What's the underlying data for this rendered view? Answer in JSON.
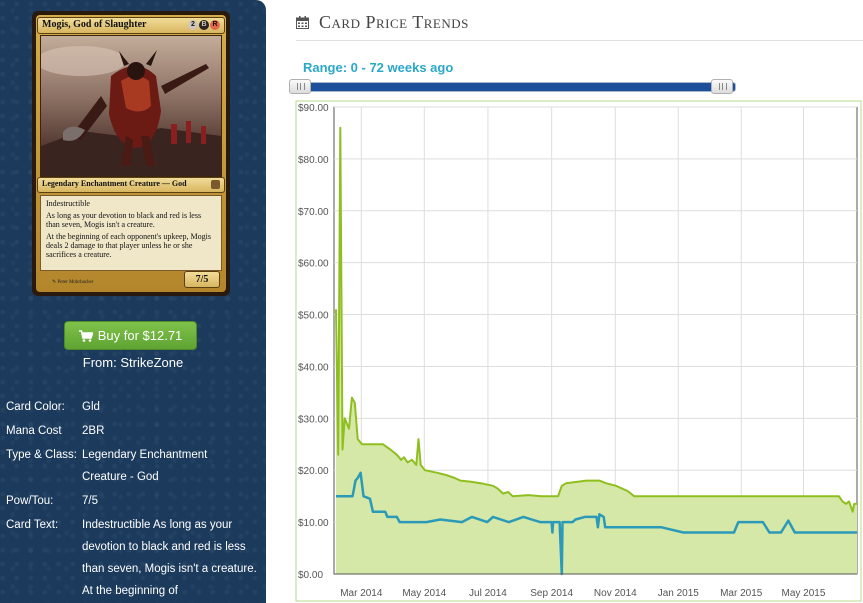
{
  "card": {
    "name": "Mogis, God of Slaughter",
    "mana_symbols": [
      "2",
      "B",
      "R"
    ],
    "type_line": "Legendary Enchantment Creature — God",
    "rules_text_1": "Indestructible",
    "rules_text_2": "As long as your devotion to black and red is less than seven, Mogis isn't a creature.",
    "rules_text_3": "At the beginning of each opponent's upkeep, Mogis deals 2 damage to that player unless he or she sacrifices a creature.",
    "power_toughness": "7/5",
    "artist": "Peter Mohrbacher"
  },
  "buy": {
    "label": "Buy for $12.71",
    "from": "From: StrikeZone"
  },
  "details": [
    {
      "label": "Card Color:",
      "value": "Gld"
    },
    {
      "label": "Mana Cost",
      "value": "2BR"
    },
    {
      "label": "Type & Class:",
      "value": "Legendary Enchantment Creature - God"
    },
    {
      "label": "Pow/Tou:",
      "value": "7/5"
    },
    {
      "label": "Card Text:",
      "value": "Indestructible As long as your devotion to black and red is less than seven, Mogis isn't a creature. At the beginning of"
    }
  ],
  "header": {
    "title": "Card Price Trends",
    "icon": "calendar-icon"
  },
  "range": {
    "label": "Range: 0 - 72 weeks ago",
    "min_weeks": 0,
    "max_weeks": 72
  },
  "colors": {
    "sidebar": "#1b3a5c",
    "accent": "#2aa8c9",
    "buy_button": "#6cb33f",
    "series_high": "#8fbf1f",
    "series_avg": "#2a9ab8",
    "fill": "#d6e8a8"
  },
  "chart_data": {
    "type": "area",
    "ylim": [
      0,
      90
    ],
    "yticks": [
      "$0.00",
      "$10.00",
      "$20.00",
      "$30.00",
      "$40.00",
      "$50.00",
      "$60.00",
      "$70.00",
      "$80.00",
      "$90.00"
    ],
    "ytick_values": [
      0,
      10,
      20,
      30,
      40,
      50,
      60,
      70,
      80,
      90
    ],
    "xticks": [
      "Mar 2014",
      "May 2014",
      "Jul 2014",
      "Sep 2014",
      "Nov 2014",
      "Jan 2015",
      "Mar 2015",
      "May 2015"
    ],
    "x_unit": "weeks since start of range",
    "xlim": [
      0,
      72
    ],
    "xtick_positions": [
      3.5,
      12.2,
      21,
      29.8,
      38.6,
      47.3,
      56,
      64.6
    ],
    "grid": true,
    "series": [
      {
        "points": [
          [
            0,
            51
          ],
          [
            0.3,
            23
          ],
          [
            0.6,
            86
          ],
          [
            0.9,
            24
          ],
          [
            1.2,
            30
          ],
          [
            1.8,
            28
          ],
          [
            2.2,
            34
          ],
          [
            2.6,
            33
          ],
          [
            3,
            26
          ],
          [
            3.6,
            25
          ],
          [
            5,
            25
          ],
          [
            6.5,
            25
          ],
          [
            7.5,
            24
          ],
          [
            8.4,
            23
          ],
          [
            9,
            22
          ],
          [
            9.4,
            22.5
          ],
          [
            9.9,
            21.5
          ],
          [
            10.5,
            22
          ],
          [
            11.1,
            21
          ],
          [
            11.4,
            26
          ],
          [
            11.7,
            21
          ],
          [
            12.3,
            20
          ],
          [
            14,
            19.5
          ],
          [
            15.4,
            19
          ],
          [
            16.4,
            18.5
          ],
          [
            17.2,
            18
          ],
          [
            18.5,
            17.8
          ],
          [
            20,
            17.5
          ],
          [
            21.7,
            17
          ],
          [
            22.3,
            16.5
          ],
          [
            23.1,
            15.5
          ],
          [
            23.8,
            15.8
          ],
          [
            24.4,
            15
          ],
          [
            26.6,
            15.2
          ],
          [
            28.4,
            15
          ],
          [
            30.7,
            15
          ],
          [
            31.2,
            17
          ],
          [
            31.8,
            17.5
          ],
          [
            34.6,
            18
          ],
          [
            36.4,
            18
          ],
          [
            37.3,
            17.5
          ],
          [
            38.7,
            17
          ],
          [
            39.5,
            16.5
          ],
          [
            40.3,
            16
          ],
          [
            41.2,
            15
          ],
          [
            45,
            15
          ],
          [
            50,
            15
          ],
          [
            57,
            15
          ],
          [
            62,
            15
          ],
          [
            67,
            15
          ],
          [
            69.5,
            15
          ],
          [
            70,
            14
          ],
          [
            70.5,
            13.5
          ],
          [
            70.9,
            14
          ],
          [
            71.4,
            12
          ],
          [
            71.6,
            13.5
          ],
          [
            72,
            13.5
          ]
        ]
      },
      {
        "points": [
          [
            0,
            15
          ],
          [
            2.3,
            15
          ],
          [
            2.7,
            18
          ],
          [
            3,
            18.5
          ],
          [
            3.4,
            19.5
          ],
          [
            3.8,
            15
          ],
          [
            4.7,
            14.5
          ],
          [
            5.1,
            12
          ],
          [
            6.8,
            12
          ],
          [
            7.1,
            11
          ],
          [
            8.4,
            11
          ],
          [
            8.8,
            10
          ],
          [
            12.5,
            10
          ],
          [
            14.4,
            10.5
          ],
          [
            17.4,
            10
          ],
          [
            18.8,
            11
          ],
          [
            20.9,
            10
          ],
          [
            21.7,
            11
          ],
          [
            23.9,
            10
          ],
          [
            25.9,
            11
          ],
          [
            28.2,
            10
          ],
          [
            29.8,
            10
          ],
          [
            29.9,
            8
          ],
          [
            30,
            10
          ],
          [
            30.9,
            10
          ],
          [
            31.2,
            0
          ],
          [
            31.3,
            10
          ],
          [
            32.7,
            10
          ],
          [
            33.1,
            10.5
          ],
          [
            34.4,
            11
          ],
          [
            36,
            11
          ],
          [
            36.2,
            9
          ],
          [
            36.4,
            11.5
          ],
          [
            37,
            11
          ],
          [
            37.2,
            9
          ],
          [
            45,
            9
          ],
          [
            48,
            8
          ],
          [
            55,
            8
          ],
          [
            55.6,
            10
          ],
          [
            59,
            10
          ],
          [
            59.9,
            8
          ],
          [
            61.5,
            8
          ],
          [
            62.5,
            10.3
          ],
          [
            63.4,
            8
          ],
          [
            65,
            8
          ],
          [
            72,
            8
          ]
        ]
      }
    ]
  }
}
